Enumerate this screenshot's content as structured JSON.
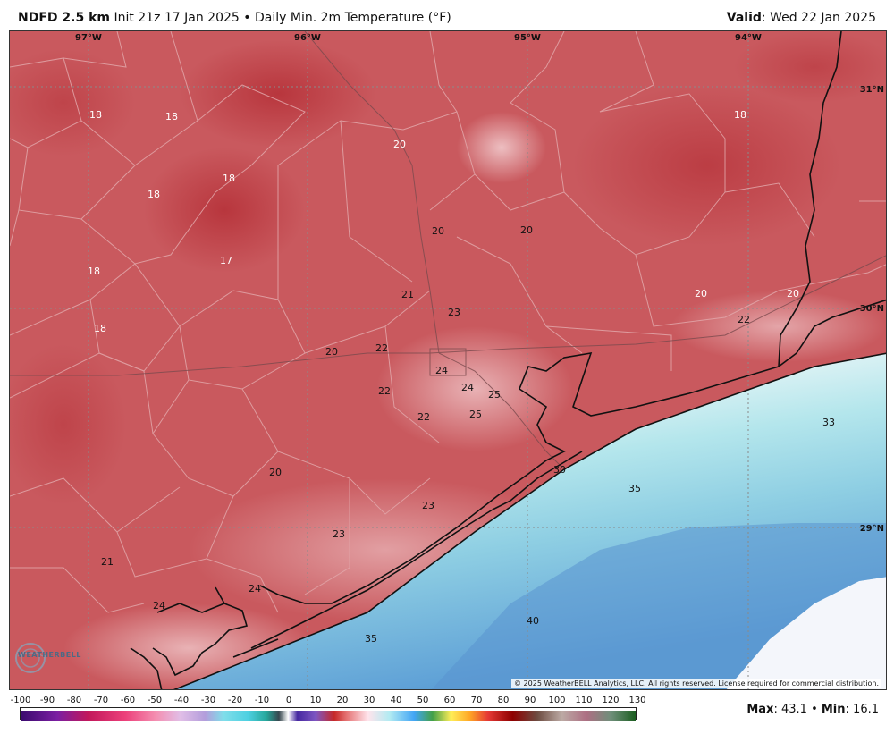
{
  "header": {
    "product": "NDFD 2.5 km",
    "init": "Init 21z 17 Jan 2025",
    "separator": "•",
    "field": "Daily Min. 2m Temperature (°F)",
    "valid_label": "Valid",
    "valid_date": ": Wed 22 Jan 2025"
  },
  "longitudes": [
    "97°W",
    "96°W",
    "95°W",
    "94°W"
  ],
  "latitudes": [
    "31°N",
    "30°N",
    "29°N"
  ],
  "temperatures": [
    "18",
    "18",
    "18",
    "18",
    "17",
    "18",
    "18",
    "20",
    "20",
    "20",
    "21",
    "23",
    "20",
    "22",
    "24",
    "24",
    "25",
    "22",
    "22",
    "25",
    "18",
    "20",
    "20",
    "22",
    "33",
    "30",
    "35",
    "20",
    "23",
    "23",
    "21",
    "24",
    "24",
    "35",
    "40"
  ],
  "copyright": "© 2025 WeatherBELL Analytics, LLC. All rights reserved. License required for commercial distribution.",
  "logo_text": "WEATHERBELL",
  "scale": {
    "ticks": [
      "-100",
      "-90",
      "-80",
      "-70",
      "-60",
      "-50",
      "-40",
      "-30",
      "-20",
      "-10",
      "0",
      "10",
      "20",
      "30",
      "40",
      "50",
      "60",
      "70",
      "80",
      "90",
      "100",
      "110",
      "120",
      "130"
    ]
  },
  "stats": {
    "max_label": "Max",
    "max_value": ": 43.1",
    "separator": "•",
    "min_label": "Min",
    "min_value": ": 16.1"
  }
}
